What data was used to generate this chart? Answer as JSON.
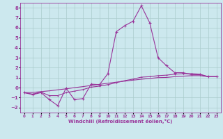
{
  "xlabel": "Windchill (Refroidissement éolien,°C)",
  "background_color": "#cce8ee",
  "grid_color": "#aacccc",
  "line_color": "#993399",
  "x_ticks": [
    0,
    1,
    2,
    3,
    4,
    5,
    6,
    7,
    8,
    9,
    10,
    11,
    12,
    13,
    14,
    15,
    16,
    17,
    18,
    19,
    20,
    21,
    22,
    23
  ],
  "xlim": [
    -0.5,
    23.5
  ],
  "ylim": [
    -2.5,
    8.5
  ],
  "y_ticks": [
    -2,
    -1,
    0,
    1,
    2,
    3,
    4,
    5,
    6,
    7,
    8
  ],
  "series1_x": [
    0,
    1,
    2,
    3,
    4,
    5,
    6,
    7,
    8,
    9,
    10,
    11,
    12,
    13,
    14,
    15,
    16,
    17,
    18,
    19,
    20,
    21,
    22,
    23
  ],
  "series1_y": [
    -0.5,
    -0.7,
    -0.5,
    -1.2,
    -1.8,
    -0.05,
    -1.2,
    -1.1,
    0.35,
    0.3,
    1.4,
    5.6,
    6.2,
    6.65,
    8.2,
    6.5,
    3.0,
    2.2,
    1.5,
    1.5,
    1.3,
    1.3,
    1.1,
    1.1
  ],
  "series2_x": [
    0,
    1,
    2,
    3,
    4,
    5,
    6,
    7,
    8,
    9,
    10,
    11,
    12,
    13,
    14,
    15,
    16,
    17,
    18,
    19,
    20,
    21,
    22,
    23
  ],
  "series2_y": [
    -0.5,
    -0.65,
    -0.45,
    -0.8,
    -0.8,
    -0.5,
    -0.35,
    -0.2,
    0.05,
    0.15,
    0.3,
    0.5,
    0.7,
    0.85,
    1.05,
    1.1,
    1.2,
    1.25,
    1.35,
    1.4,
    1.4,
    1.35,
    1.1,
    1.1
  ],
  "series3_x": [
    0,
    1,
    2,
    3,
    4,
    5,
    6,
    7,
    8,
    9,
    10,
    11,
    12,
    13,
    14,
    15,
    16,
    17,
    18,
    19,
    20,
    21,
    22,
    23
  ],
  "series3_y": [
    -0.5,
    -0.48,
    -0.4,
    -0.32,
    -0.22,
    -0.12,
    0.0,
    0.1,
    0.22,
    0.33,
    0.44,
    0.55,
    0.65,
    0.75,
    0.84,
    0.92,
    1.0,
    1.02,
    1.1,
    1.15,
    1.2,
    1.2,
    1.1,
    1.1
  ]
}
